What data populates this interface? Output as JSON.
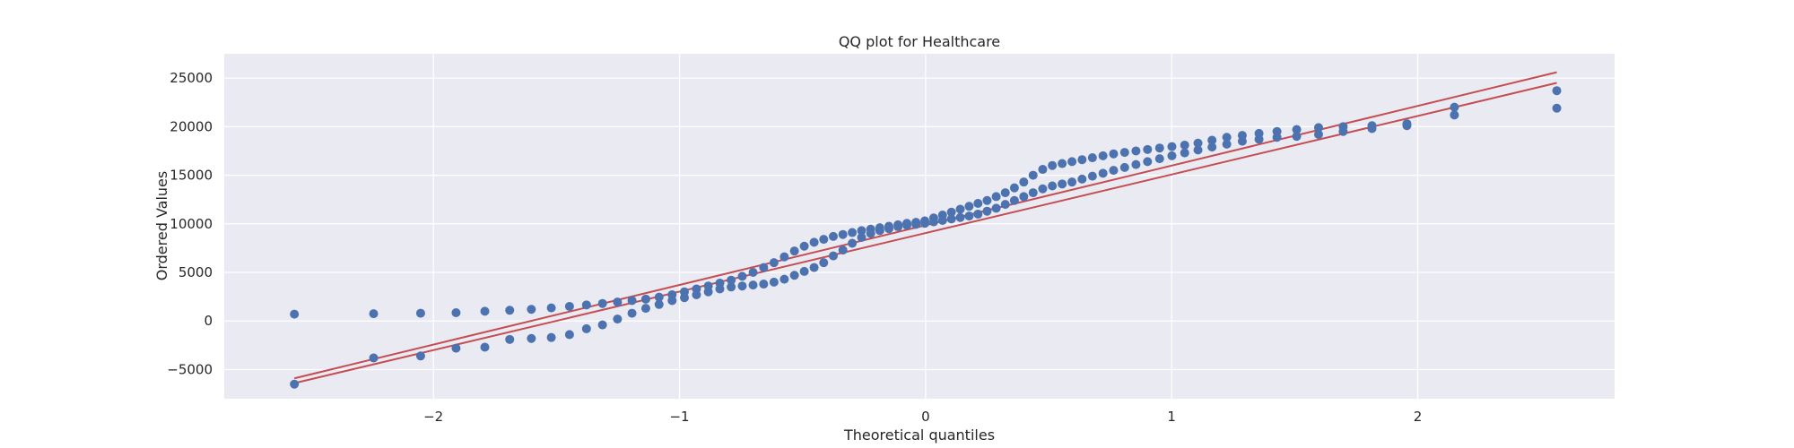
{
  "chart_data": {
    "type": "scatter",
    "title": "QQ plot for Healthcare",
    "xlabel": "Theoretical quantiles",
    "ylabel": "Ordered Values",
    "xlim": [
      -2.85,
      2.8
    ],
    "ylim": [
      -8000,
      27500
    ],
    "xticks": [
      -2,
      -1,
      0,
      1,
      2
    ],
    "xtick_labels": [
      "−2",
      "−1",
      "0",
      "1",
      "2"
    ],
    "yticks": [
      -5000,
      0,
      5000,
      10000,
      15000,
      20000,
      25000
    ],
    "ytick_labels": [
      "−5000",
      "0",
      "5000",
      "10000",
      "15000",
      "20000",
      "25000"
    ],
    "grid": true,
    "legend": "none",
    "colors": {
      "background": "#eaeaf2",
      "grid": "#ffffff",
      "points": "#4c72b0",
      "fit_line": "#c44e52"
    },
    "series": [
      {
        "kind": "points",
        "quantiles": [
          -2.565,
          -2.243,
          -2.052,
          -1.908,
          -1.791,
          -1.69,
          -1.602,
          -1.521,
          -1.447,
          -1.378,
          -1.313,
          -1.252,
          -1.193,
          -1.137,
          -1.083,
          -1.03,
          -0.98,
          -0.931,
          -0.883,
          -0.836,
          -0.79,
          -0.745,
          -0.701,
          -0.658,
          -0.616,
          -0.574,
          -0.533,
          -0.493,
          -0.453,
          -0.414,
          -0.375,
          -0.336,
          -0.298,
          -0.26,
          -0.223,
          -0.186,
          -0.149,
          -0.112,
          -0.076,
          -0.039,
          -0.003,
          0.033,
          0.069,
          0.105,
          0.141,
          0.177,
          0.213,
          0.25,
          0.287,
          0.324,
          0.361,
          0.399,
          0.437,
          0.476,
          0.515,
          0.555,
          0.595,
          0.636,
          0.678,
          0.721,
          0.764,
          0.809,
          0.855,
          0.902,
          0.951,
          1.001,
          1.053,
          1.107,
          1.164,
          1.224,
          1.287,
          1.355,
          1.428,
          1.508,
          1.597,
          1.697,
          1.814,
          1.956,
          2.149,
          2.565
        ],
        "values": [
          700,
          750,
          800,
          850,
          1000,
          1100,
          1200,
          1350,
          1500,
          1650,
          1800,
          1950,
          2100,
          2250,
          2450,
          2700,
          3000,
          3300,
          3600,
          3900,
          4200,
          4600,
          5000,
          5500,
          6000,
          6600,
          7200,
          7700,
          8100,
          8400,
          8700,
          8900,
          9100,
          9300,
          9450,
          9600,
          9750,
          9900,
          10050,
          10150,
          10300,
          10600,
          10900,
          11200,
          11500,
          11800,
          12100,
          12400,
          12800,
          13200,
          13700,
          14300,
          15000,
          15600,
          16000,
          16200,
          16400,
          16600,
          16800,
          17000,
          17200,
          17350,
          17500,
          17650,
          17800,
          17950,
          18100,
          18300,
          18600,
          18900,
          19100,
          19300,
          19500,
          19700,
          19900,
          20000,
          20100,
          20300,
          22000,
          23700
        ]
      },
      {
        "kind": "line",
        "x": [
          -2.565,
          2.565
        ],
        "y": [
          -5900,
          25600
        ]
      },
      {
        "kind": "points",
        "quantiles": [
          -2.565,
          -2.243,
          -2.052,
          -1.908,
          -1.791,
          -1.69,
          -1.602,
          -1.521,
          -1.447,
          -1.378,
          -1.313,
          -1.252,
          -1.193,
          -1.137,
          -1.083,
          -1.03,
          -0.98,
          -0.931,
          -0.883,
          -0.836,
          -0.79,
          -0.745,
          -0.701,
          -0.658,
          -0.616,
          -0.574,
          -0.533,
          -0.493,
          -0.453,
          -0.414,
          -0.375,
          -0.336,
          -0.298,
          -0.26,
          -0.223,
          -0.186,
          -0.149,
          -0.112,
          -0.076,
          -0.039,
          -0.003,
          0.033,
          0.069,
          0.105,
          0.141,
          0.177,
          0.213,
          0.25,
          0.287,
          0.324,
          0.361,
          0.399,
          0.437,
          0.476,
          0.515,
          0.555,
          0.595,
          0.636,
          0.678,
          0.721,
          0.764,
          0.809,
          0.855,
          0.902,
          0.951,
          1.001,
          1.053,
          1.107,
          1.164,
          1.224,
          1.287,
          1.355,
          1.428,
          1.508,
          1.597,
          1.697,
          1.814,
          1.956,
          2.149,
          2.565
        ],
        "values": [
          -6500,
          -3800,
          -3600,
          -2800,
          -2700,
          -1900,
          -1800,
          -1700,
          -1400,
          -800,
          -400,
          200,
          800,
          1300,
          1700,
          2100,
          2400,
          2700,
          3000,
          3300,
          3500,
          3600,
          3700,
          3800,
          4000,
          4300,
          4700,
          5100,
          5500,
          6000,
          6700,
          7300,
          8000,
          8600,
          9000,
          9300,
          9500,
          9700,
          9850,
          9950,
          10050,
          10200,
          10350,
          10500,
          10650,
          10800,
          11000,
          11300,
          11600,
          12000,
          12400,
          12800,
          13200,
          13600,
          13900,
          14100,
          14300,
          14600,
          14900,
          15200,
          15500,
          15800,
          16100,
          16400,
          16700,
          17000,
          17300,
          17600,
          17900,
          18200,
          18500,
          18700,
          18900,
          19000,
          19200,
          19500,
          19800,
          20100,
          21200,
          21900
        ]
      },
      {
        "kind": "line",
        "x": [
          -2.565,
          2.565
        ],
        "y": [
          -6400,
          24500
        ]
      }
    ]
  }
}
